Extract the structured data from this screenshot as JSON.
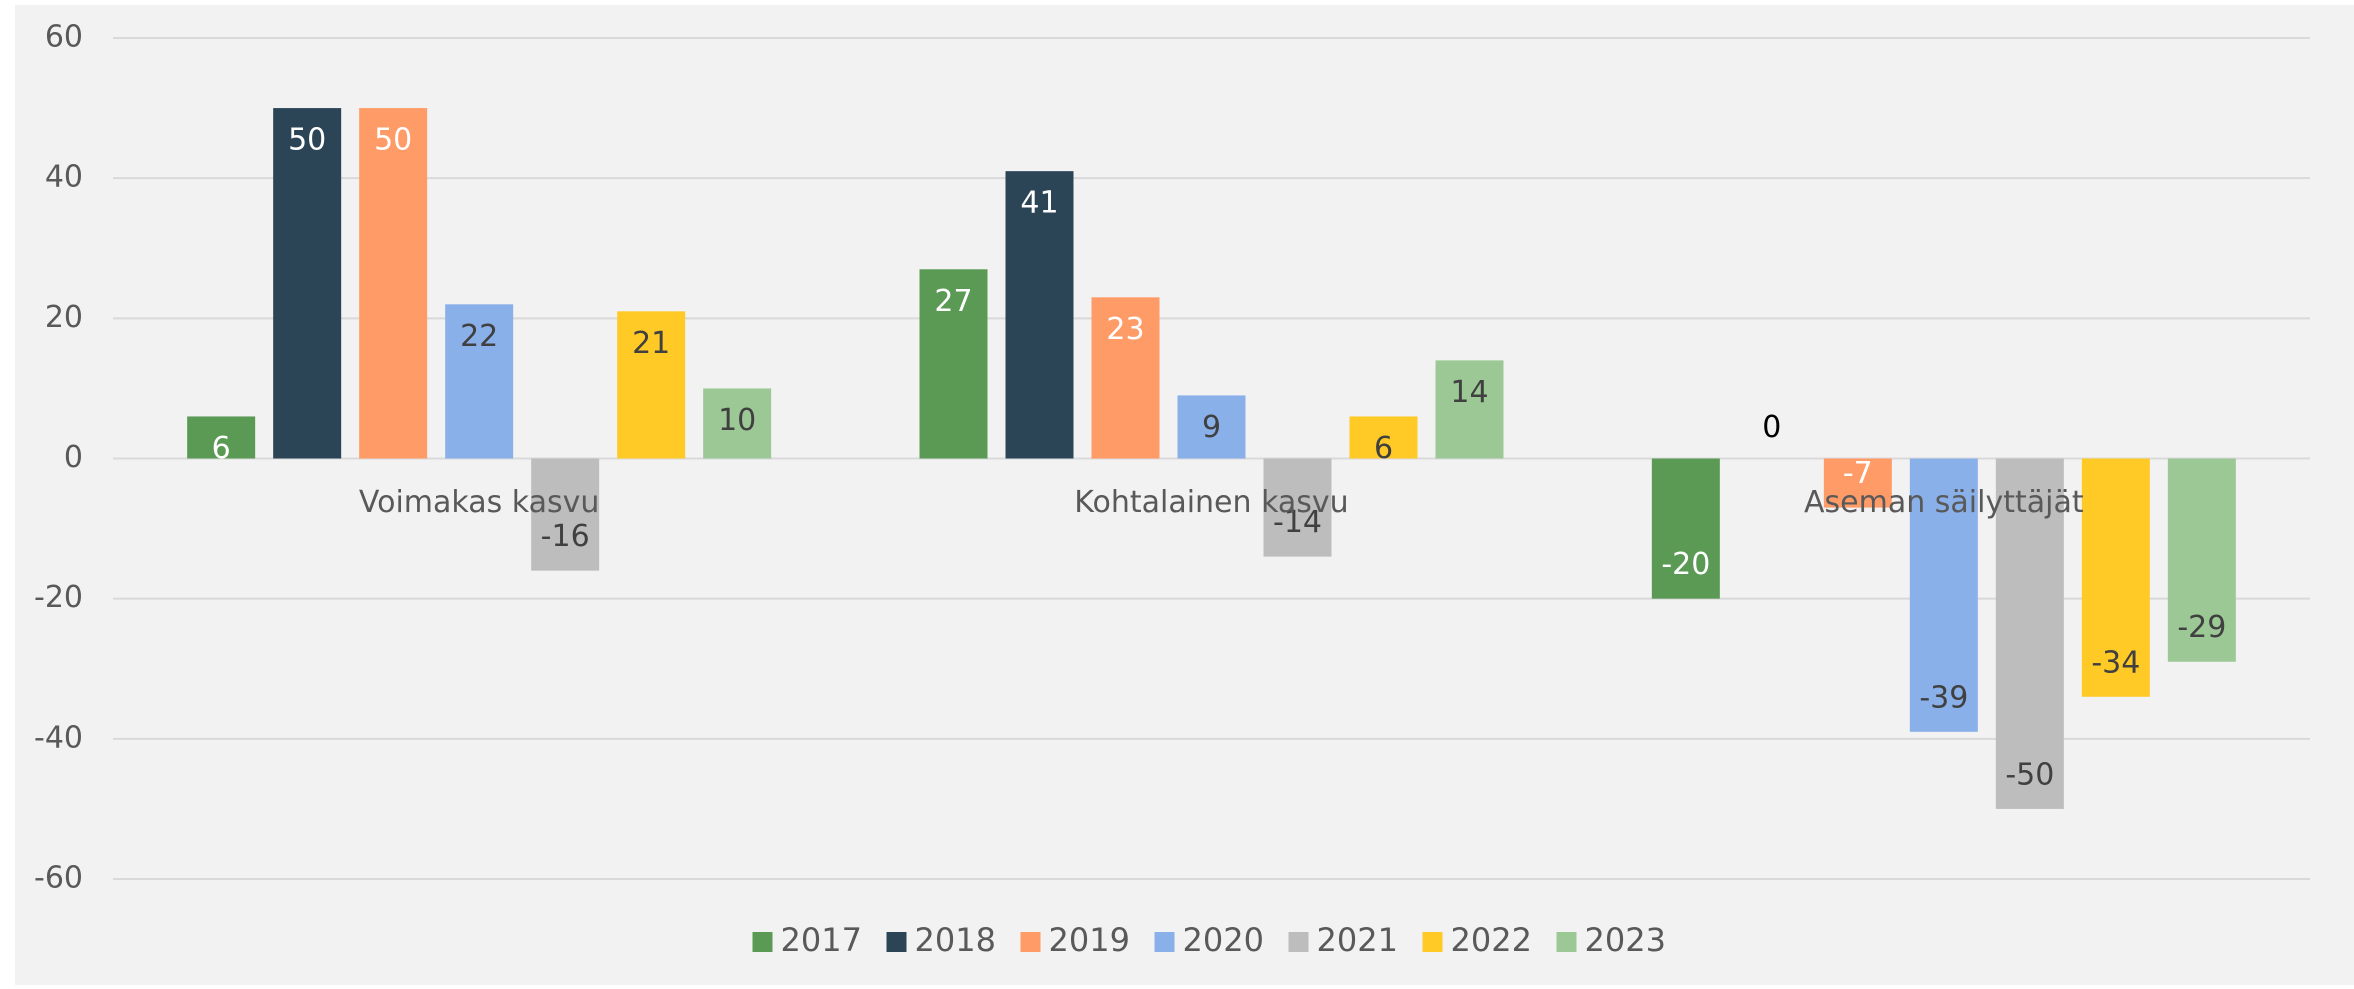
{
  "chart_data": {
    "type": "bar",
    "categories": [
      "Voimakas kasvu",
      "Kohtalainen kasvu",
      "Aseman säilyttäjät"
    ],
    "series": [
      {
        "name": "2017",
        "color": "#5a9a55",
        "values": [
          6,
          27,
          -20
        ]
      },
      {
        "name": "2018",
        "color": "#2b4557",
        "values": [
          50,
          41,
          0
        ]
      },
      {
        "name": "2019",
        "color": "#ff9b66",
        "values": [
          50,
          23,
          -7
        ]
      },
      {
        "name": "2020",
        "color": "#8ab0ea",
        "values": [
          22,
          9,
          -39
        ]
      },
      {
        "name": "2021",
        "color": "#bdbdbd",
        "values": [
          -16,
          -14,
          -50
        ]
      },
      {
        "name": "2022",
        "color": "#ffc926",
        "values": [
          21,
          6,
          -34
        ]
      },
      {
        "name": "2023",
        "color": "#9cc896",
        "values": [
          10,
          14,
          -29
        ]
      }
    ],
    "ylim": [
      -60,
      60
    ],
    "yticks": [
      -60,
      -40,
      -20,
      0,
      20,
      40,
      60
    ],
    "grid": true,
    "legend": "bottom"
  }
}
